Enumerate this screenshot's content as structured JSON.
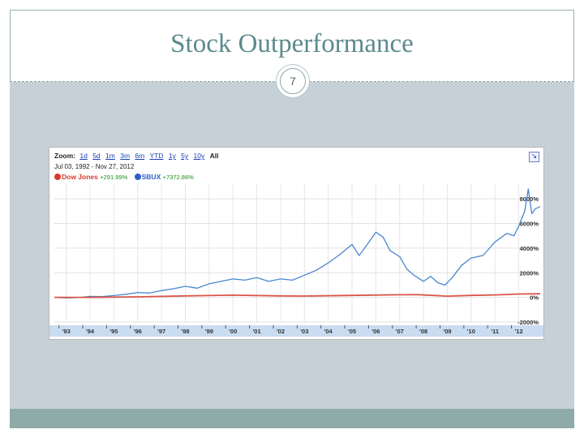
{
  "slide": {
    "title": "Stock Outperformance",
    "page_number": "7",
    "colors": {
      "title": "#5b8a8c",
      "band": "#c6d1d7",
      "footer": "#8faba9"
    }
  },
  "chart_widget": {
    "zoom_label": "Zoom:",
    "zoom_options": [
      "1d",
      "5d",
      "1m",
      "3m",
      "6m",
      "YTD",
      "1y",
      "5y",
      "10y",
      "All"
    ],
    "date_range": "Jul 03, 1992  -  Nov 27, 2012",
    "legend": [
      {
        "name": "Dow Jones",
        "change": "+291.99%",
        "color": "#d93a2b"
      },
      {
        "name": "SBUX",
        "change": "+7372.86%",
        "color": "#2d5fc8"
      }
    ],
    "expand_icon": "expand-icon"
  },
  "chart_data": {
    "type": "line",
    "title": "",
    "xlabel": "",
    "ylabel": "",
    "xlim": [
      1992.5,
      2012.9
    ],
    "ylim": [
      -2000,
      9000
    ],
    "y_ticks": [
      8000,
      6000,
      4000,
      2000,
      0,
      -2000
    ],
    "y_tick_labels": [
      "8000%",
      "6000%",
      "4000%",
      "2000%",
      "0%",
      "-2000%"
    ],
    "x_ticks": [
      1993,
      1994,
      1995,
      1996,
      1997,
      1998,
      1999,
      2000,
      2001,
      2002,
      2003,
      2004,
      2005,
      2006,
      2007,
      2008,
      2009,
      2010,
      2011,
      2012
    ],
    "x_tick_labels": [
      "'93",
      "'94",
      "'95",
      "'96",
      "'97",
      "'98",
      "'99",
      "'00",
      "'01",
      "'02",
      "'03",
      "'04",
      "'05",
      "'06",
      "'07",
      "'08",
      "'09",
      "'10",
      "'11",
      "'12"
    ],
    "grid": true,
    "series": [
      {
        "name": "SBUX",
        "color": "#4a86cf",
        "x": [
          1992.5,
          1993.0,
          1993.5,
          1994.0,
          1994.5,
          1995.0,
          1995.5,
          1996.0,
          1996.5,
          1997.0,
          1997.5,
          1998.0,
          1998.5,
          1999.0,
          1999.5,
          2000.0,
          2000.5,
          2001.0,
          2001.5,
          2002.0,
          2002.5,
          2003.0,
          2003.5,
          2004.0,
          2004.5,
          2005.0,
          2005.3,
          2005.6,
          2006.0,
          2006.3,
          2006.6,
          2007.0,
          2007.3,
          2007.6,
          2008.0,
          2008.3,
          2008.6,
          2008.9,
          2009.2,
          2009.6,
          2010.0,
          2010.5,
          2011.0,
          2011.5,
          2011.8,
          2012.0,
          2012.25,
          2012.4,
          2012.55,
          2012.7,
          2012.9
        ],
        "values": [
          0,
          -50,
          -20,
          80,
          60,
          150,
          250,
          400,
          350,
          550,
          700,
          900,
          750,
          1100,
          1300,
          1500,
          1400,
          1600,
          1300,
          1500,
          1400,
          1800,
          2200,
          2800,
          3500,
          4300,
          3400,
          4200,
          5300,
          4900,
          3800,
          3300,
          2300,
          1800,
          1300,
          1700,
          1200,
          1000,
          1600,
          2600,
          3200,
          3400,
          4500,
          5200,
          5000,
          5800,
          7000,
          8800,
          6800,
          7200,
          7372
        ]
      },
      {
        "name": "Dow Jones",
        "color": "#d9564a",
        "x": [
          1992.5,
          1994.0,
          1996.0,
          1998.0,
          2000.0,
          2002.0,
          2003.0,
          2005.0,
          2007.0,
          2007.8,
          2009.0,
          2010.0,
          2011.0,
          2012.0,
          2012.9
        ],
        "values": [
          0,
          0,
          40,
          120,
          180,
          120,
          110,
          160,
          210,
          220,
          100,
          160,
          200,
          270,
          292
        ]
      }
    ]
  }
}
